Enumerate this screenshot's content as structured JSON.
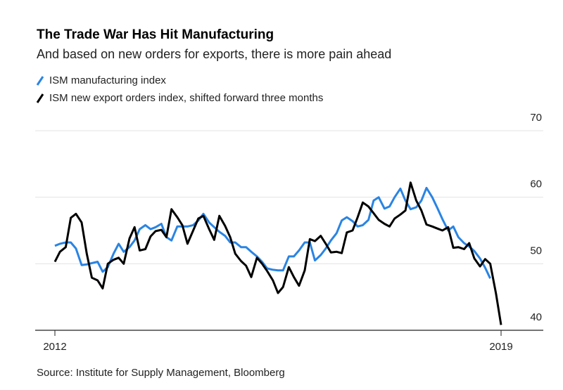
{
  "chart_data": {
    "type": "line",
    "title": "The Trade War Has Hit Manufacturing",
    "subtitle": "And based on new orders for exports, there is more pain ahead",
    "source": "Source: Institute for Supply Management, Bloomberg",
    "x": [
      2012,
      2012.08,
      2012.17,
      2012.25,
      2012.33,
      2012.42,
      2012.5,
      2012.58,
      2012.67,
      2012.75,
      2012.83,
      2012.92,
      2013,
      2013.08,
      2013.17,
      2013.25,
      2013.33,
      2013.42,
      2013.5,
      2013.58,
      2013.67,
      2013.75,
      2013.83,
      2013.92,
      2014,
      2014.08,
      2014.17,
      2014.25,
      2014.33,
      2014.42,
      2014.5,
      2014.58,
      2014.67,
      2014.75,
      2014.83,
      2014.92,
      2015,
      2015.08,
      2015.17,
      2015.25,
      2015.33,
      2015.42,
      2015.5,
      2015.58,
      2015.67,
      2015.75,
      2015.83,
      2015.92,
      2016,
      2016.08,
      2016.17,
      2016.25,
      2016.33,
      2016.42,
      2016.5,
      2016.58,
      2016.67,
      2016.75,
      2016.83,
      2016.92,
      2017,
      2017.08,
      2017.17,
      2017.25,
      2017.33,
      2017.42,
      2017.5,
      2017.58,
      2017.67,
      2017.75,
      2017.83,
      2017.92,
      2018,
      2018.08,
      2018.17,
      2018.25,
      2018.33,
      2018.42,
      2018.5,
      2018.58,
      2018.67,
      2018.75,
      2018.83,
      2018.92,
      2019
    ],
    "series": [
      {
        "name": "ISM manufacturing index",
        "color": "#2a84e3",
        "values": [
          52.7,
          53.0,
          53.2,
          53.2,
          52.3,
          49.8,
          49.9,
          50.1,
          50.3,
          48.8,
          49.5,
          51.5,
          53.0,
          51.8,
          52.5,
          53.5,
          55.2,
          55.8,
          55.2,
          55.5,
          56.0,
          54.0,
          53.5,
          55.6,
          55.6,
          55.6,
          55.8,
          56.5,
          57.5,
          56.2,
          55.5,
          54.8,
          54.2,
          53.2,
          53.2,
          52.5,
          52.5,
          51.8,
          51.1,
          50.3,
          49.3,
          49.1,
          49.0,
          49.0,
          51.1,
          51.1,
          52.0,
          53.2,
          53.2,
          50.5,
          51.3,
          52.3,
          53.5,
          54.6,
          56.5,
          57.0,
          56.4,
          55.6,
          55.8,
          56.6,
          59.5,
          60.0,
          58.3,
          58.6,
          60.0,
          61.3,
          59.5,
          58.2,
          58.5,
          59.5,
          61.4,
          60.0,
          58.4,
          56.7,
          55.0,
          55.6,
          54.0,
          53.1,
          52.6,
          51.9,
          50.8,
          49.4,
          47.8,
          null,
          null
        ]
      },
      {
        "name": "ISM new export orders index, shifted forward three months",
        "color": "#000000",
        "values": [
          50.3,
          51.8,
          52.5,
          56.9,
          57.5,
          56.2,
          51.5,
          47.9,
          47.5,
          46.3,
          50.0,
          50.6,
          50.9,
          50.0,
          53.8,
          55.5,
          52.0,
          52.2,
          54.1,
          54.9,
          55.1,
          54.0,
          58.2,
          57.0,
          55.8,
          53.0,
          55.0,
          56.8,
          57.2,
          55.2,
          53.6,
          57.2,
          55.7,
          54.0,
          51.5,
          50.4,
          49.7,
          48.0,
          50.9,
          50.0,
          48.9,
          47.5,
          45.6,
          46.5,
          49.5,
          48.0,
          46.7,
          49.0,
          53.7,
          53.4,
          54.2,
          53.0,
          51.7,
          51.8,
          51.6,
          54.7,
          55.0,
          57.0,
          59.2,
          58.6,
          57.6,
          56.6,
          56.0,
          55.6,
          56.8,
          57.4,
          58.0,
          62.2,
          59.5,
          58.0,
          55.9,
          55.6,
          55.3,
          55.0,
          55.5,
          52.4,
          52.5,
          52.2,
          53.1,
          50.8,
          49.6,
          50.7,
          50.0,
          45.5,
          40.8
        ]
      }
    ],
    "xlim": [
      2012,
      2019
    ],
    "xticks": [
      2012,
      2019
    ],
    "ylim": [
      40,
      70
    ],
    "yticks": [
      40,
      50,
      60,
      70
    ],
    "grid": true
  }
}
